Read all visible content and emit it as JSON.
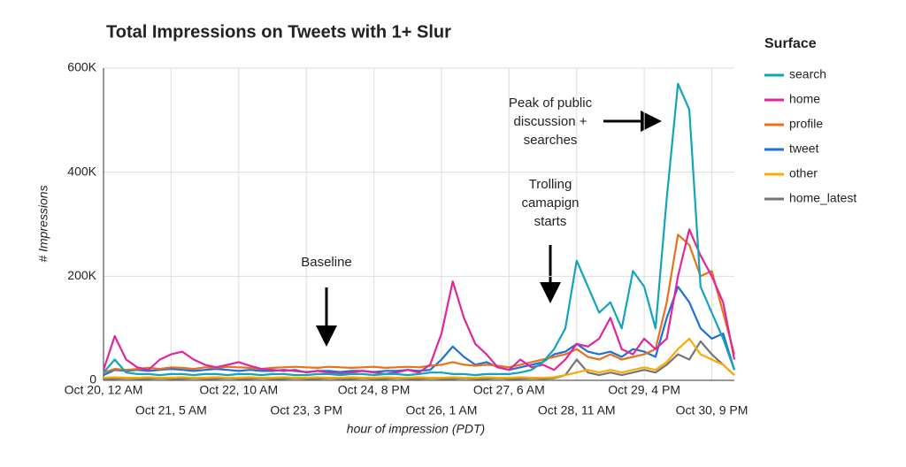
{
  "chart_data": {
    "type": "line",
    "title": "Total Impressions on Tweets with 1+ Slur",
    "x_label": "hour of impression (PDT)",
    "y_label": "# Impressions",
    "legend_title": "Surface",
    "legend": "right",
    "grid": true,
    "ylim": [
      0,
      600000
    ],
    "yticks": [
      0,
      {
        "value": 200000,
        "label": "200K"
      },
      {
        "value": 400000,
        "label": "400K"
      },
      {
        "value": 600000,
        "label": "600K"
      }
    ],
    "categories": [
      "Oct 20, 12 AM",
      null,
      null,
      null,
      null,
      null,
      "Oct 21, 5 AM",
      null,
      null,
      null,
      null,
      null,
      "Oct 22, 10 AM",
      null,
      null,
      null,
      null,
      null,
      "Oct 23, 3 PM",
      null,
      null,
      null,
      null,
      null,
      "Oct 24, 8 PM",
      null,
      null,
      null,
      null,
      null,
      "Oct 26, 1 AM",
      null,
      null,
      null,
      null,
      null,
      "Oct 27, 6 AM",
      null,
      null,
      null,
      null,
      null,
      "Oct 28, 11 AM",
      null,
      null,
      null,
      null,
      null,
      "Oct 29, 4 PM",
      null,
      null,
      null,
      null,
      null,
      "Oct 30, 9 PM",
      null,
      null
    ],
    "series": [
      {
        "name": "search",
        "color": "#12a4b8",
        "values": [
          15000,
          40000,
          15000,
          12000,
          12000,
          10000,
          12000,
          12000,
          10000,
          12000,
          12000,
          10000,
          12000,
          12000,
          10000,
          12000,
          12000,
          10000,
          10000,
          12000,
          12000,
          10000,
          12000,
          12000,
          10000,
          12000,
          12000,
          10000,
          12000,
          15000,
          15000,
          12000,
          12000,
          10000,
          12000,
          12000,
          12000,
          15000,
          20000,
          35000,
          60000,
          100000,
          230000,
          180000,
          130000,
          150000,
          100000,
          210000,
          180000,
          100000,
          350000,
          570000,
          520000,
          180000,
          130000,
          80000,
          20000
        ]
      },
      {
        "name": "home",
        "color": "#e0269e",
        "values": [
          20000,
          85000,
          40000,
          25000,
          20000,
          40000,
          50000,
          55000,
          40000,
          30000,
          25000,
          30000,
          35000,
          28000,
          22000,
          20000,
          18000,
          20000,
          15000,
          18000,
          15000,
          12000,
          15000,
          18000,
          15000,
          12000,
          15000,
          20000,
          15000,
          30000,
          90000,
          190000,
          120000,
          70000,
          50000,
          25000,
          20000,
          40000,
          25000,
          30000,
          20000,
          40000,
          70000,
          65000,
          80000,
          120000,
          60000,
          50000,
          80000,
          60000,
          80000,
          200000,
          290000,
          240000,
          200000,
          150000,
          40000
        ]
      },
      {
        "name": "profile",
        "color": "#e8711a",
        "values": [
          15000,
          22000,
          20000,
          22000,
          24000,
          22000,
          25000,
          24000,
          22000,
          25000,
          24000,
          26000,
          25000,
          24000,
          22000,
          24000,
          25000,
          26000,
          25000,
          24000,
          26000,
          25000,
          24000,
          25000,
          26000,
          24000,
          25000,
          26000,
          25000,
          28000,
          30000,
          35000,
          30000,
          28000,
          30000,
          28000,
          25000,
          30000,
          35000,
          40000,
          45000,
          50000,
          60000,
          45000,
          40000,
          50000,
          40000,
          45000,
          50000,
          60000,
          150000,
          280000,
          260000,
          200000,
          210000,
          130000,
          50000
        ]
      },
      {
        "name": "tweet",
        "color": "#1e6fd9",
        "values": [
          10000,
          20000,
          18000,
          20000,
          18000,
          20000,
          22000,
          20000,
          18000,
          20000,
          22000,
          20000,
          18000,
          20000,
          18000,
          18000,
          20000,
          18000,
          16000,
          18000,
          18000,
          16000,
          18000,
          18000,
          16000,
          18000,
          18000,
          20000,
          18000,
          20000,
          40000,
          65000,
          45000,
          30000,
          35000,
          25000,
          20000,
          25000,
          30000,
          35000,
          50000,
          55000,
          70000,
          55000,
          50000,
          55000,
          45000,
          60000,
          55000,
          45000,
          120000,
          180000,
          150000,
          100000,
          80000,
          90000,
          20000
        ]
      },
      {
        "name": "other",
        "color": "#f9ab00",
        "values": [
          5000,
          6000,
          5000,
          5000,
          6000,
          5000,
          5000,
          6000,
          5000,
          5000,
          6000,
          5000,
          5000,
          6000,
          5000,
          5000,
          6000,
          5000,
          5000,
          6000,
          5000,
          5000,
          6000,
          5000,
          5000,
          6000,
          5000,
          5000,
          6000,
          5000,
          5000,
          6000,
          5000,
          5000,
          6000,
          5000,
          5000,
          6000,
          5000,
          5000,
          6000,
          10000,
          15000,
          20000,
          15000,
          20000,
          15000,
          20000,
          25000,
          20000,
          35000,
          60000,
          80000,
          50000,
          40000,
          30000,
          10000
        ]
      },
      {
        "name": "home_latest",
        "color": "#757575",
        "values": [
          3000,
          3000,
          4000,
          3000,
          3000,
          4000,
          3000,
          3000,
          4000,
          3000,
          3000,
          4000,
          3000,
          3000,
          4000,
          3000,
          3000,
          4000,
          3000,
          3000,
          4000,
          3000,
          3000,
          4000,
          3000,
          3000,
          4000,
          3000,
          3000,
          4000,
          3000,
          3000,
          4000,
          3000,
          3000,
          4000,
          3000,
          3000,
          4000,
          3000,
          4000,
          10000,
          40000,
          15000,
          10000,
          15000,
          10000,
          15000,
          20000,
          15000,
          30000,
          50000,
          40000,
          75000,
          50000,
          30000,
          10000
        ]
      }
    ],
    "annotations": [
      {
        "lines": [
          "Baseline"
        ]
      },
      {
        "lines": [
          "Trolling",
          "camapign",
          "starts"
        ]
      },
      {
        "lines": [
          "Peak of public",
          "discussion +",
          "searches"
        ]
      }
    ]
  }
}
